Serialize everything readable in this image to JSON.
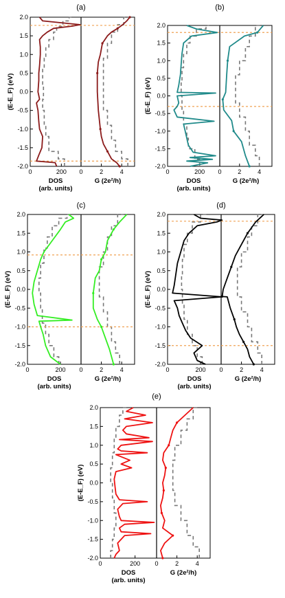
{
  "figure": {
    "ylabel": "(E-E_F) (eV)",
    "dos_label_line1": "DOS",
    "dos_label_line2": "(arb. units)",
    "g_label": "G (2e²/h)"
  },
  "colors": {
    "a": "#8b1a1a",
    "b": "#1f8a8a",
    "c": "#33ee22",
    "d": "#000000",
    "e": "#ee1111",
    "reference": "#777777",
    "fermi_marker": "#f0a050"
  },
  "chart_data": [
    {
      "panel": "(a)",
      "type": "line",
      "ylim": [
        -2.0,
        2.0
      ],
      "yticks": [
        "2.0",
        "1.5",
        "1.0",
        "0.5",
        "0.0",
        "-0.5",
        "-1.0",
        "-1.5",
        "-2.0"
      ],
      "dos_ticks": [
        "0",
        "200"
      ],
      "g_ticks": [
        "0",
        "2",
        "4"
      ],
      "dos_xlim": [
        0,
        300
      ],
      "g_xlim": [
        0,
        5
      ],
      "hlines": [
        1.78,
        -1.86
      ],
      "dos": {
        "E": [
          -2.0,
          -1.9,
          -1.86,
          -1.7,
          -1.5,
          -1.2,
          -1.0,
          -0.8,
          -0.5,
          -0.3,
          -0.2,
          0.0,
          0.3,
          0.5,
          0.7,
          1.0,
          1.2,
          1.4,
          1.5,
          1.6,
          1.7,
          1.76,
          1.8,
          1.85,
          1.9,
          2.0
        ],
        "v": [
          170,
          160,
          40,
          55,
          75,
          80,
          60,
          55,
          50,
          40,
          60,
          50,
          55,
          55,
          60,
          65,
          65,
          60,
          80,
          110,
          150,
          270,
          320,
          200,
          80,
          60
        ]
      },
      "g": {
        "E": [
          -2.0,
          -1.9,
          -1.8,
          -1.6,
          -1.4,
          -1.2,
          -1.0,
          -0.5,
          0.0,
          0.5,
          0.8,
          1.0,
          1.3,
          1.5,
          1.6,
          1.7,
          1.8,
          1.9,
          2.0
        ],
        "v": [
          3.8,
          3.5,
          3.0,
          2.6,
          2.2,
          2.0,
          1.9,
          1.7,
          1.6,
          1.6,
          1.7,
          1.9,
          2.1,
          2.6,
          3.0,
          3.6,
          4.1,
          4.5,
          4.8
        ]
      },
      "ref_dos": {
        "E": [
          -2.0,
          -1.8,
          -1.6,
          -1.2,
          -0.9,
          -0.5,
          -0.2,
          0.2,
          0.6,
          0.9,
          1.2,
          1.4,
          1.6,
          1.75,
          1.9,
          2.0
        ],
        "v": [
          220,
          180,
          120,
          100,
          90,
          80,
          85,
          80,
          90,
          100,
          120,
          150,
          170,
          210,
          250,
          280
        ]
      },
      "ref_g": {
        "E": [
          -2.0,
          -1.8,
          -1.6,
          -1.3,
          -0.9,
          -0.5,
          0.0,
          0.5,
          0.9,
          1.3,
          1.6,
          1.8,
          2.0
        ],
        "v": [
          4.6,
          4.0,
          3.4,
          3.0,
          2.6,
          2.2,
          2.2,
          2.2,
          2.6,
          3.0,
          3.6,
          4.2,
          4.8
        ]
      }
    },
    {
      "panel": "(b)",
      "type": "line",
      "ylim": [
        -2.0,
        2.0
      ],
      "yticks": [
        "2.0",
        "1.5",
        "1.0",
        "0.5",
        "0.0",
        "-0.5",
        "-1.0",
        "-1.5",
        "-2.0"
      ],
      "dos_ticks": [
        "0",
        "200"
      ],
      "g_ticks": [
        "0",
        "2",
        "4"
      ],
      "dos_xlim": [
        0,
        300
      ],
      "g_xlim": [
        0,
        5
      ],
      "hlines": [
        1.8,
        -0.3
      ],
      "dos": {
        "E": [
          -2.0,
          -1.9,
          -1.85,
          -1.8,
          -1.75,
          -1.7,
          -1.6,
          -1.4,
          -1.2,
          -1.0,
          -0.8,
          -0.72,
          -0.6,
          -0.4,
          -0.3,
          -0.2,
          0.0,
          0.08,
          0.1,
          0.3,
          0.6,
          0.9,
          1.2,
          1.5,
          1.7,
          1.8,
          1.9,
          2.0
        ],
        "v": [
          140,
          250,
          120,
          280,
          140,
          300,
          160,
          130,
          120,
          110,
          100,
          290,
          60,
          40,
          60,
          70,
          60,
          300,
          60,
          70,
          80,
          85,
          90,
          100,
          150,
          310,
          180,
          120
        ]
      },
      "g": {
        "E": [
          -2.0,
          -1.7,
          -1.3,
          -1.0,
          -0.7,
          -0.4,
          -0.1,
          0.1,
          0.6,
          1.0,
          1.4,
          1.7,
          1.8,
          2.0
        ],
        "v": [
          3.0,
          2.6,
          2.2,
          1.4,
          1.2,
          0.4,
          0.3,
          0.6,
          0.7,
          0.8,
          1.0,
          2.5,
          3.8,
          4.4
        ]
      },
      "ref_dos": {
        "E": [
          -2.0,
          -1.8,
          -1.5,
          -1.2,
          -0.8,
          -0.4,
          0.0,
          0.4,
          0.8,
          1.2,
          1.5,
          1.7,
          1.9,
          2.0
        ],
        "v": [
          200,
          170,
          130,
          120,
          100,
          90,
          85,
          90,
          100,
          120,
          140,
          180,
          240,
          260
        ]
      },
      "ref_g": {
        "E": [
          -2.0,
          -1.7,
          -1.4,
          -1.0,
          -0.6,
          -0.2,
          0.2,
          0.6,
          1.0,
          1.4,
          1.7,
          2.0
        ],
        "v": [
          4.0,
          3.6,
          3.0,
          2.6,
          2.0,
          1.6,
          1.6,
          2.0,
          2.6,
          3.0,
          3.6,
          4.2
        ]
      }
    },
    {
      "panel": "(c)",
      "type": "line",
      "ylim": [
        -2.0,
        2.0
      ],
      "yticks": [
        "2.0",
        "1.5",
        "1.0",
        "0.5",
        "0.0",
        "-0.5",
        "-1.0",
        "-1.5",
        "-2.0"
      ],
      "dos_ticks": [
        "0",
        "200"
      ],
      "g_ticks": [
        "0",
        "2",
        "4"
      ],
      "dos_xlim": [
        0,
        300
      ],
      "g_xlim": [
        0,
        5
      ],
      "hlines": [
        0.92,
        -1.0
      ],
      "dos": {
        "E": [
          -2.0,
          -1.8,
          -1.5,
          -1.2,
          -1.0,
          -0.85,
          -0.82,
          -0.7,
          -0.4,
          -0.1,
          0.2,
          0.5,
          0.8,
          1.0,
          1.3,
          1.6,
          1.8,
          1.9,
          2.0
        ],
        "v": [
          200,
          140,
          110,
          95,
          80,
          70,
          270,
          60,
          40,
          30,
          40,
          60,
          80,
          100,
          150,
          200,
          230,
          280,
          250
        ]
      },
      "g": {
        "E": [
          -2.0,
          -1.6,
          -1.3,
          -1.0,
          -0.8,
          -0.5,
          -0.1,
          0.3,
          0.5,
          0.8,
          1.0,
          1.3,
          1.6,
          1.8,
          2.0
        ],
        "v": [
          3.2,
          2.8,
          2.4,
          2.0,
          1.6,
          1.2,
          1.2,
          1.4,
          1.8,
          2.0,
          2.4,
          2.6,
          3.2,
          3.8,
          4.5
        ]
      },
      "ref_dos": {
        "E": [
          -2.0,
          -1.8,
          -1.5,
          -1.2,
          -0.9,
          -0.5,
          -0.1,
          0.3,
          0.7,
          1.1,
          1.4,
          1.7,
          1.9,
          2.0
        ],
        "v": [
          190,
          160,
          130,
          110,
          90,
          80,
          70,
          80,
          100,
          120,
          150,
          190,
          240,
          260
        ]
      },
      "ref_g": {
        "E": [
          -2.0,
          -1.7,
          -1.4,
          -1.0,
          -0.6,
          -0.2,
          0.2,
          0.6,
          1.0,
          1.4,
          1.7,
          2.0
        ],
        "v": [
          3.8,
          3.4,
          3.0,
          2.6,
          2.2,
          1.8,
          1.8,
          2.2,
          2.6,
          3.0,
          3.6,
          4.2
        ]
      }
    },
    {
      "panel": "(d)",
      "type": "line",
      "ylim": [
        -2.0,
        2.0
      ],
      "yticks": [
        "2.0",
        "1.5",
        "1.0",
        "0.5",
        "0.0",
        "-0.5",
        "-1.0",
        "-1.5",
        "-2.0"
      ],
      "dos_ticks": [
        "0",
        "200"
      ],
      "g_ticks": [
        "0",
        "2",
        "4"
      ],
      "dos_xlim": [
        0,
        300
      ],
      "g_xlim": [
        0,
        5
      ],
      "hlines": [
        1.82,
        -1.5
      ],
      "dos": {
        "E": [
          -2.0,
          -1.9,
          -1.7,
          -1.5,
          -1.3,
          -1.1,
          -0.9,
          -0.7,
          -0.5,
          -0.3,
          -0.2,
          -0.1,
          0.1,
          0.4,
          0.7,
          1.0,
          1.3,
          1.5,
          1.7,
          1.8,
          1.85,
          1.9,
          2.0
        ],
        "v": [
          230,
          180,
          160,
          210,
          140,
          110,
          90,
          70,
          60,
          40,
          330,
          30,
          40,
          50,
          60,
          80,
          100,
          130,
          180,
          300,
          330,
          200,
          160
        ]
      },
      "g": {
        "E": [
          -2.0,
          -1.8,
          -1.6,
          -1.4,
          -1.2,
          -1.0,
          -0.8,
          -0.5,
          -0.2,
          -0.19,
          0.0,
          0.3,
          0.6,
          0.9,
          1.2,
          1.5,
          1.8,
          2.0
        ],
        "v": [
          3.2,
          2.8,
          2.6,
          2.2,
          1.8,
          1.5,
          1.3,
          0.9,
          0.6,
          0.1,
          0.2,
          0.6,
          1.0,
          1.4,
          2.0,
          2.6,
          3.4,
          4.2
        ]
      },
      "ref_dos": {
        "E": [
          -2.0,
          -1.8,
          -1.5,
          -1.2,
          -0.8,
          -0.4,
          0.0,
          0.4,
          0.8,
          1.2,
          1.5,
          1.8,
          2.0
        ],
        "v": [
          210,
          180,
          150,
          120,
          100,
          90,
          85,
          90,
          100,
          120,
          150,
          200,
          250
        ]
      },
      "ref_g": {
        "E": [
          -2.0,
          -1.7,
          -1.4,
          -1.0,
          -0.6,
          -0.2,
          0.2,
          0.6,
          1.0,
          1.4,
          1.7,
          2.0
        ],
        "v": [
          4.0,
          3.6,
          3.0,
          2.6,
          2.0,
          1.6,
          1.6,
          2.0,
          2.6,
          3.0,
          3.6,
          4.2
        ]
      }
    },
    {
      "panel": "(e)",
      "type": "line",
      "ylim": [
        -2.0,
        2.0
      ],
      "yticks": [
        "2.0",
        "1.5",
        "1.0",
        "0.5",
        "0.0",
        "-0.5",
        "-1.0",
        "-1.5",
        "-2.0"
      ],
      "dos_ticks": [
        "0",
        "200"
      ],
      "g_ticks": [
        "0",
        "2",
        "4"
      ],
      "dos_xlim": [
        0,
        300
      ],
      "g_xlim": [
        0,
        5
      ],
      "hlines": [],
      "dos": {
        "E": [
          -2.0,
          -1.9,
          -1.8,
          -1.6,
          -1.5,
          -1.4,
          -1.35,
          -1.3,
          -1.2,
          -1.1,
          -1.05,
          -1.0,
          -0.9,
          -0.7,
          -0.55,
          -0.5,
          -0.45,
          -0.3,
          -0.1,
          0.1,
          0.3,
          0.4,
          0.5,
          0.6,
          0.75,
          0.8,
          0.85,
          0.9,
          1.0,
          1.1,
          1.15,
          1.2,
          1.3,
          1.4,
          1.5,
          1.6,
          1.7,
          1.8,
          1.9,
          2.0
        ],
        "v": [
          80,
          90,
          110,
          100,
          120,
          140,
          290,
          120,
          110,
          140,
          310,
          120,
          110,
          100,
          130,
          270,
          110,
          90,
          85,
          80,
          90,
          180,
          120,
          170,
          90,
          270,
          120,
          100,
          120,
          300,
          110,
          280,
          150,
          130,
          150,
          300,
          140,
          260,
          150,
          190
        ]
      },
      "g": {
        "E": [
          -2.0,
          -1.8,
          -1.6,
          -1.4,
          -1.2,
          -1.0,
          -0.8,
          -0.6,
          -0.4,
          -0.2,
          0.0,
          0.2,
          0.4,
          0.6,
          0.8,
          1.0,
          1.2,
          1.4,
          1.6,
          1.8,
          2.0
        ],
        "v": [
          0.6,
          0.4,
          0.8,
          1.6,
          0.6,
          0.8,
          0.5,
          0.4,
          0.6,
          0.7,
          0.6,
          0.8,
          0.9,
          0.6,
          0.7,
          1.2,
          1.4,
          1.6,
          2.0,
          2.8,
          3.6
        ]
      },
      "ref_dos": {
        "E": [
          -2.0,
          -1.8,
          -1.5,
          -1.2,
          -0.8,
          -0.4,
          0.0,
          0.4,
          0.8,
          1.2,
          1.5,
          1.8,
          2.0
        ],
        "v": [
          60,
          70,
          80,
          90,
          80,
          70,
          60,
          70,
          80,
          90,
          110,
          130,
          150
        ]
      },
      "ref_g": {
        "E": [
          -2.0,
          -1.7,
          -1.4,
          -1.0,
          -0.6,
          -0.2,
          0.2,
          0.6,
          1.0,
          1.4,
          1.7,
          2.0
        ],
        "v": [
          4.2,
          3.6,
          3.0,
          2.4,
          1.8,
          1.6,
          1.6,
          1.8,
          2.4,
          3.0,
          3.6,
          4.2
        ]
      }
    }
  ]
}
